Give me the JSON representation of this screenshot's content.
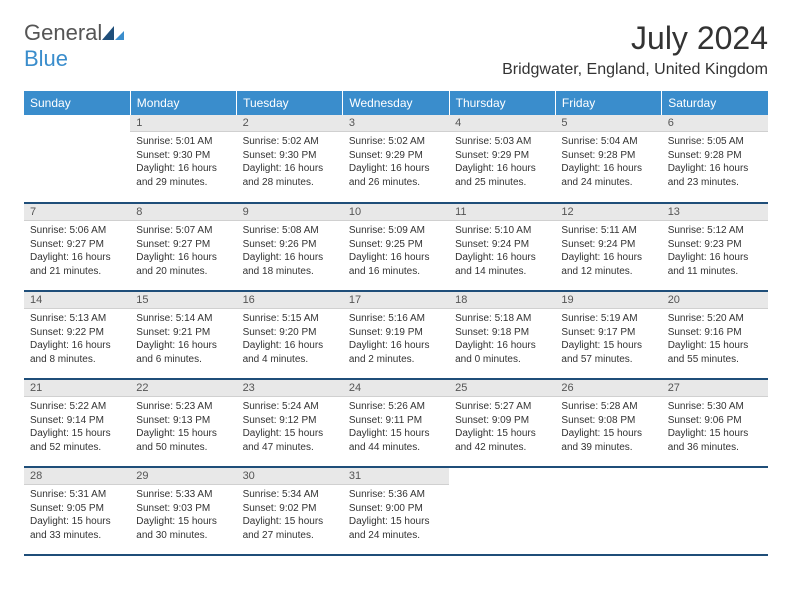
{
  "logo": {
    "text1": "General",
    "text2": "Blue"
  },
  "title": "July 2024",
  "location": "Bridgwater, England, United Kingdom",
  "colors": {
    "header_bg": "#3a8dcc",
    "header_text": "#ffffff",
    "daynum_bg": "#e8e8e8",
    "row_border": "#1f4e79",
    "logo_gray": "#555555",
    "logo_blue": "#3a8dcc"
  },
  "weekdays": [
    "Sunday",
    "Monday",
    "Tuesday",
    "Wednesday",
    "Thursday",
    "Friday",
    "Saturday"
  ],
  "start_weekday": 1,
  "days_in_month": 31,
  "days": {
    "1": {
      "sunrise": "5:01 AM",
      "sunset": "9:30 PM",
      "daylight": "16 hours and 29 minutes."
    },
    "2": {
      "sunrise": "5:02 AM",
      "sunset": "9:30 PM",
      "daylight": "16 hours and 28 minutes."
    },
    "3": {
      "sunrise": "5:02 AM",
      "sunset": "9:29 PM",
      "daylight": "16 hours and 26 minutes."
    },
    "4": {
      "sunrise": "5:03 AM",
      "sunset": "9:29 PM",
      "daylight": "16 hours and 25 minutes."
    },
    "5": {
      "sunrise": "5:04 AM",
      "sunset": "9:28 PM",
      "daylight": "16 hours and 24 minutes."
    },
    "6": {
      "sunrise": "5:05 AM",
      "sunset": "9:28 PM",
      "daylight": "16 hours and 23 minutes."
    },
    "7": {
      "sunrise": "5:06 AM",
      "sunset": "9:27 PM",
      "daylight": "16 hours and 21 minutes."
    },
    "8": {
      "sunrise": "5:07 AM",
      "sunset": "9:27 PM",
      "daylight": "16 hours and 20 minutes."
    },
    "9": {
      "sunrise": "5:08 AM",
      "sunset": "9:26 PM",
      "daylight": "16 hours and 18 minutes."
    },
    "10": {
      "sunrise": "5:09 AM",
      "sunset": "9:25 PM",
      "daylight": "16 hours and 16 minutes."
    },
    "11": {
      "sunrise": "5:10 AM",
      "sunset": "9:24 PM",
      "daylight": "16 hours and 14 minutes."
    },
    "12": {
      "sunrise": "5:11 AM",
      "sunset": "9:24 PM",
      "daylight": "16 hours and 12 minutes."
    },
    "13": {
      "sunrise": "5:12 AM",
      "sunset": "9:23 PM",
      "daylight": "16 hours and 11 minutes."
    },
    "14": {
      "sunrise": "5:13 AM",
      "sunset": "9:22 PM",
      "daylight": "16 hours and 8 minutes."
    },
    "15": {
      "sunrise": "5:14 AM",
      "sunset": "9:21 PM",
      "daylight": "16 hours and 6 minutes."
    },
    "16": {
      "sunrise": "5:15 AM",
      "sunset": "9:20 PM",
      "daylight": "16 hours and 4 minutes."
    },
    "17": {
      "sunrise": "5:16 AM",
      "sunset": "9:19 PM",
      "daylight": "16 hours and 2 minutes."
    },
    "18": {
      "sunrise": "5:18 AM",
      "sunset": "9:18 PM",
      "daylight": "16 hours and 0 minutes."
    },
    "19": {
      "sunrise": "5:19 AM",
      "sunset": "9:17 PM",
      "daylight": "15 hours and 57 minutes."
    },
    "20": {
      "sunrise": "5:20 AM",
      "sunset": "9:16 PM",
      "daylight": "15 hours and 55 minutes."
    },
    "21": {
      "sunrise": "5:22 AM",
      "sunset": "9:14 PM",
      "daylight": "15 hours and 52 minutes."
    },
    "22": {
      "sunrise": "5:23 AM",
      "sunset": "9:13 PM",
      "daylight": "15 hours and 50 minutes."
    },
    "23": {
      "sunrise": "5:24 AM",
      "sunset": "9:12 PM",
      "daylight": "15 hours and 47 minutes."
    },
    "24": {
      "sunrise": "5:26 AM",
      "sunset": "9:11 PM",
      "daylight": "15 hours and 44 minutes."
    },
    "25": {
      "sunrise": "5:27 AM",
      "sunset": "9:09 PM",
      "daylight": "15 hours and 42 minutes."
    },
    "26": {
      "sunrise": "5:28 AM",
      "sunset": "9:08 PM",
      "daylight": "15 hours and 39 minutes."
    },
    "27": {
      "sunrise": "5:30 AM",
      "sunset": "9:06 PM",
      "daylight": "15 hours and 36 minutes."
    },
    "28": {
      "sunrise": "5:31 AM",
      "sunset": "9:05 PM",
      "daylight": "15 hours and 33 minutes."
    },
    "29": {
      "sunrise": "5:33 AM",
      "sunset": "9:03 PM",
      "daylight": "15 hours and 30 minutes."
    },
    "30": {
      "sunrise": "5:34 AM",
      "sunset": "9:02 PM",
      "daylight": "15 hours and 27 minutes."
    },
    "31": {
      "sunrise": "5:36 AM",
      "sunset": "9:00 PM",
      "daylight": "15 hours and 24 minutes."
    }
  }
}
